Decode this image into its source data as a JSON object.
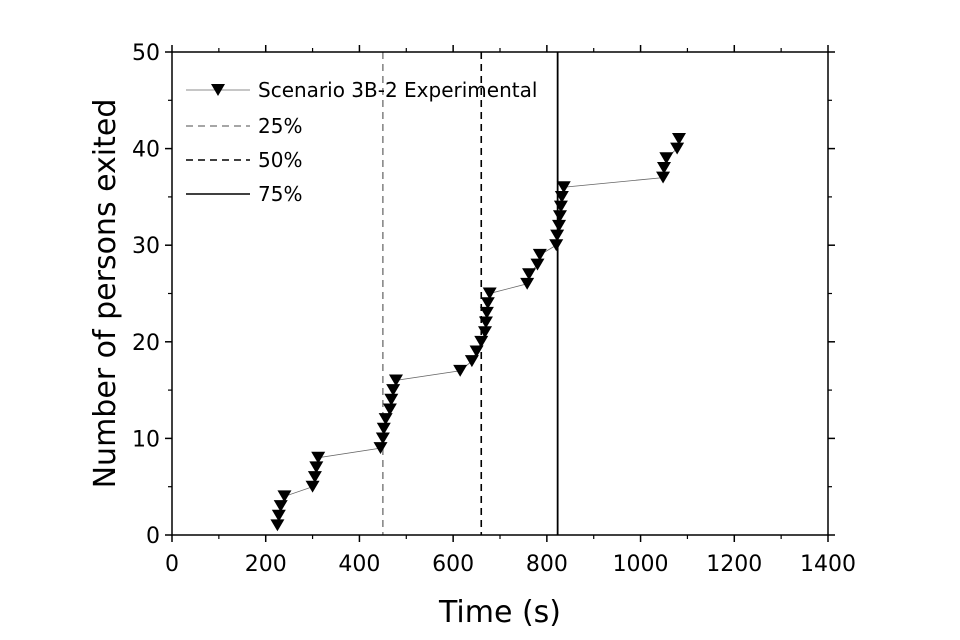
{
  "chart_data": {
    "type": "scatter",
    "title": "",
    "xlabel": "Time (s)",
    "ylabel": "Number of persons exited",
    "xlim": [
      0,
      1400
    ],
    "ylim": [
      0,
      50
    ],
    "xticks": [
      "0",
      "200",
      "400",
      "600",
      "800",
      "1000",
      "1200",
      "1400"
    ],
    "yticks": [
      "0",
      "10",
      "20",
      "30",
      "40",
      "50"
    ],
    "grid": false,
    "legend_position": "top-left",
    "series": [
      {
        "name": "Scenario 3B-2 Experimental",
        "marker": "triangle-down",
        "color": "#000000",
        "points": [
          [
            225,
            1
          ],
          [
            228,
            2
          ],
          [
            232,
            3
          ],
          [
            240,
            4
          ],
          [
            300,
            5
          ],
          [
            305,
            6
          ],
          [
            308,
            7
          ],
          [
            312,
            8
          ],
          [
            445,
            9
          ],
          [
            450,
            10
          ],
          [
            452,
            11
          ],
          [
            456,
            12
          ],
          [
            465,
            13
          ],
          [
            468,
            14
          ],
          [
            472,
            15
          ],
          [
            478,
            16
          ],
          [
            615,
            17
          ],
          [
            640,
            18
          ],
          [
            650,
            19
          ],
          [
            660,
            20
          ],
          [
            668,
            21
          ],
          [
            670,
            22
          ],
          [
            672,
            23
          ],
          [
            674,
            24
          ],
          [
            678,
            25
          ],
          [
            758,
            26
          ],
          [
            762,
            27
          ],
          [
            780,
            28
          ],
          [
            785,
            29
          ],
          [
            820,
            30
          ],
          [
            822,
            31
          ],
          [
            826,
            32
          ],
          [
            828,
            33
          ],
          [
            830,
            34
          ],
          [
            832,
            35
          ],
          [
            836,
            36
          ],
          [
            1048,
            37
          ],
          [
            1050,
            38
          ],
          [
            1055,
            39
          ],
          [
            1078,
            40
          ],
          [
            1082,
            41
          ]
        ]
      }
    ],
    "reference_lines": [
      {
        "name": "25%",
        "x": 450,
        "style": "dashed",
        "color": "#888888"
      },
      {
        "name": "50%",
        "x": 660,
        "style": "dashed",
        "color": "#000000"
      },
      {
        "name": "75%",
        "x": 823,
        "style": "solid",
        "color": "#000000"
      }
    ]
  }
}
